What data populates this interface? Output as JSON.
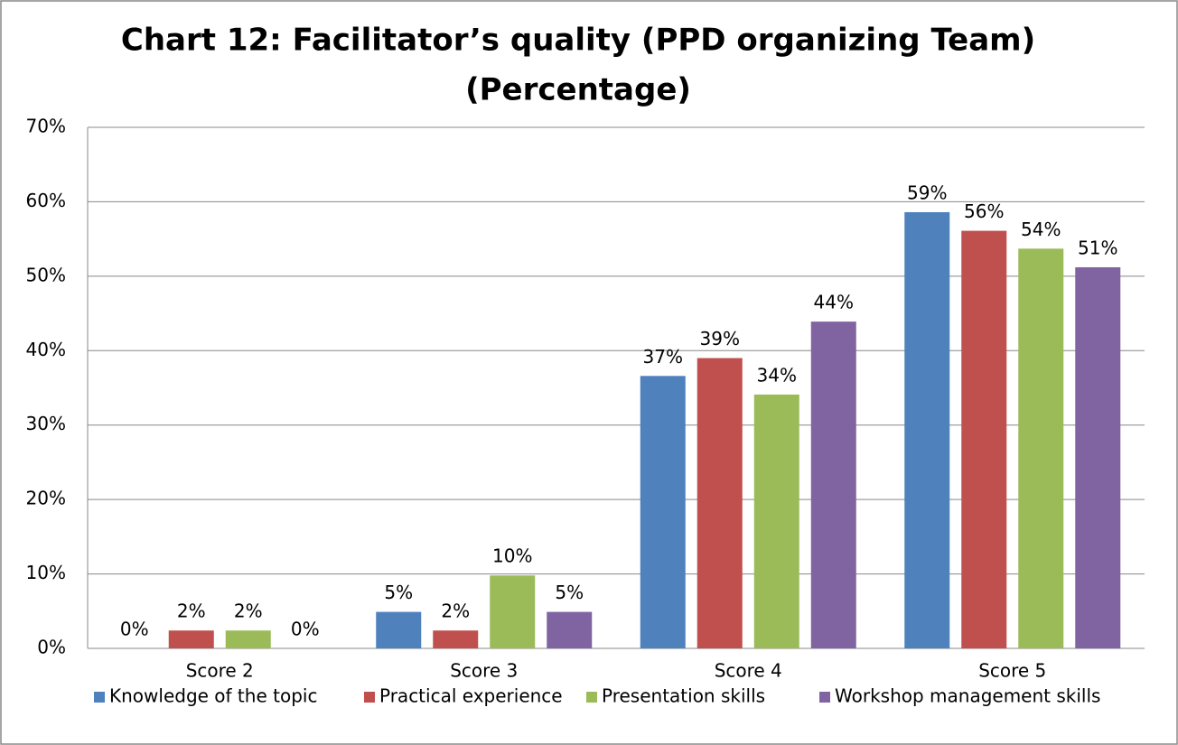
{
  "chart_data": {
    "type": "bar",
    "title": [
      "Chart 12: Facilitator’s quality (PPD organizing Team)",
      "(Percentage)"
    ],
    "categories": [
      "Score 2",
      "Score 3",
      "Score 4",
      "Score 5"
    ],
    "series": [
      {
        "name": "Knowledge of the topic",
        "color": "#4f81bd",
        "values": [
          0,
          4.9,
          36.6,
          58.6
        ],
        "value_labels": [
          "0%",
          "5%",
          "37%",
          "59%"
        ]
      },
      {
        "name": "Practical experience",
        "color": "#c0504d",
        "values": [
          2.4,
          2.4,
          39.0,
          56.1
        ],
        "value_labels": [
          "2%",
          "2%",
          "39%",
          "56%"
        ]
      },
      {
        "name": "Presentation skills",
        "color": "#9bbb59",
        "values": [
          2.4,
          9.8,
          34.1,
          53.7
        ],
        "value_labels": [
          "2%",
          "10%",
          "34%",
          "54%"
        ]
      },
      {
        "name": "Workshop management skills",
        "color": "#8064a2",
        "values": [
          0,
          4.9,
          43.9,
          51.2
        ],
        "value_labels": [
          "0%",
          "5%",
          "44%",
          "51%"
        ]
      }
    ],
    "ylim": [
      0,
      70
    ],
    "yticks": [
      {
        "value": 0,
        "label": "0%"
      },
      {
        "value": 10,
        "label": "10%"
      },
      {
        "value": 20,
        "label": "20%"
      },
      {
        "value": 30,
        "label": "30%"
      },
      {
        "value": 40,
        "label": "40%"
      },
      {
        "value": 50,
        "label": "50%"
      },
      {
        "value": 60,
        "label": "60%"
      },
      {
        "value": 70,
        "label": "70%"
      }
    ],
    "grid": true,
    "legend": "bottom"
  }
}
